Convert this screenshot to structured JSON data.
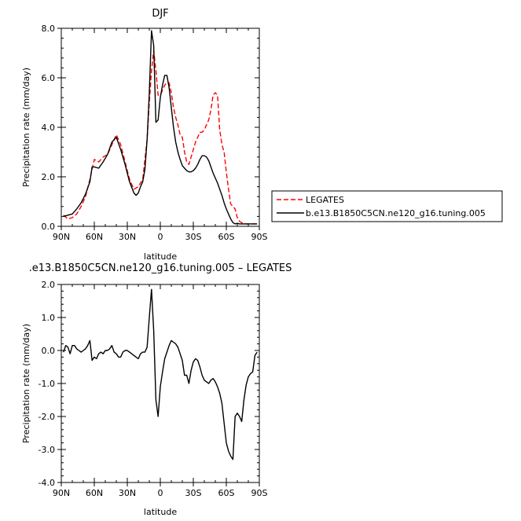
{
  "chart_data": [
    {
      "type": "line",
      "title": "DJF",
      "xlabel": "latitude",
      "ylabel": "Precipitation rate (mm/day)",
      "xlim": [
        90,
        -90
      ],
      "ylim": [
        0,
        8
      ],
      "x_ticks": [
        90,
        60,
        30,
        0,
        -30,
        -60,
        -90
      ],
      "x_tick_labels": [
        "90N",
        "60N",
        "30N",
        "0",
        "30S",
        "60S",
        "90S"
      ],
      "y_ticks": [
        0,
        2,
        4,
        6,
        8
      ],
      "y_tick_labels": [
        "0.0",
        "2.0",
        "4.0",
        "6.0",
        "8.0"
      ],
      "legend_position": "right",
      "series": [
        {
          "name": "LEGATES",
          "color": "#ff0000",
          "dash": "dashed",
          "x": [
            88,
            84,
            80,
            76,
            72,
            68,
            64,
            60,
            56,
            52,
            48,
            44,
            40,
            36,
            32,
            28,
            24,
            20,
            16,
            12,
            10,
            8,
            6,
            4,
            2,
            0,
            -2,
            -4,
            -6,
            -8,
            -10,
            -12,
            -14,
            -16,
            -18,
            -20,
            -22,
            -24,
            -26,
            -28,
            -30,
            -32,
            -34,
            -36,
            -38,
            -40,
            -42,
            -44,
            -46,
            -48,
            -50,
            -52,
            -54,
            -56,
            -58,
            -60,
            -62,
            -64,
            -66,
            -68,
            -70,
            -72,
            -74,
            -76,
            -78,
            -80,
            -82,
            -84,
            -86,
            -88
          ],
          "y": [
            0.45,
            0.3,
            0.35,
            0.5,
            0.8,
            1.2,
            1.9,
            2.7,
            2.6,
            2.8,
            2.9,
            3.3,
            3.7,
            3.3,
            2.6,
            1.9,
            1.5,
            1.6,
            1.9,
            3.5,
            5.0,
            6.3,
            7.1,
            6.3,
            5.3,
            5.3,
            5.5,
            5.7,
            5.8,
            5.8,
            5.4,
            4.8,
            4.4,
            4.1,
            3.7,
            3.6,
            3.0,
            2.6,
            2.5,
            2.8,
            3.1,
            3.4,
            3.6,
            3.8,
            3.8,
            3.9,
            4.1,
            4.3,
            4.7,
            5.3,
            5.4,
            5.3,
            3.9,
            3.3,
            3.0,
            2.2,
            1.5,
            0.9,
            0.8,
            0.7,
            0.35,
            0.2,
            0.15,
            0.1,
            0.1,
            0.1,
            0.1,
            0.1,
            0.1,
            0.1
          ]
        },
        {
          "name": "b.e13.B1850C5CN.ne120_g16.tuning.005",
          "color": "#000000",
          "dash": "solid",
          "x": [
            88,
            84,
            80,
            76,
            72,
            68,
            64,
            62,
            60,
            56,
            52,
            48,
            44,
            40,
            36,
            32,
            28,
            24,
            22,
            20,
            18,
            16,
            14,
            12,
            10,
            8,
            6,
            4,
            2,
            0,
            -2,
            -4,
            -6,
            -8,
            -10,
            -12,
            -14,
            -16,
            -18,
            -20,
            -22,
            -24,
            -26,
            -28,
            -30,
            -32,
            -34,
            -36,
            -38,
            -40,
            -42,
            -44,
            -46,
            -48,
            -50,
            -52,
            -54,
            -56,
            -58,
            -60,
            -62,
            -64,
            -66,
            -68,
            -70,
            -72,
            -74,
            -76,
            -78,
            -80,
            -82,
            -84,
            -86,
            -88
          ],
          "y": [
            0.4,
            0.45,
            0.5,
            0.7,
            0.95,
            1.3,
            1.8,
            2.4,
            2.4,
            2.35,
            2.6,
            2.9,
            3.4,
            3.6,
            3.1,
            2.5,
            1.8,
            1.35,
            1.25,
            1.35,
            1.6,
            1.8,
            2.3,
            3.5,
            5.4,
            7.9,
            7.3,
            4.2,
            4.3,
            5.2,
            5.7,
            6.1,
            6.1,
            5.6,
            4.8,
            4.0,
            3.4,
            3.0,
            2.7,
            2.45,
            2.35,
            2.25,
            2.2,
            2.2,
            2.25,
            2.35,
            2.5,
            2.7,
            2.85,
            2.85,
            2.8,
            2.65,
            2.4,
            2.15,
            1.95,
            1.75,
            1.5,
            1.25,
            0.95,
            0.7,
            0.5,
            0.3,
            0.15,
            0.1,
            0.12,
            0.1,
            0.1,
            0.1,
            0.1,
            0.1,
            0.1,
            0.1,
            0.1,
            0.1
          ]
        }
      ]
    },
    {
      "type": "line",
      "title": ".e13.B1850C5CN.ne120_g16.tuning.005 – LEGATES",
      "xlabel": "latitude",
      "ylabel": "Precipitation rate (mm/day)",
      "xlim": [
        90,
        -90
      ],
      "ylim": [
        -4,
        2
      ],
      "x_ticks": [
        90,
        60,
        30,
        0,
        -30,
        -60,
        -90
      ],
      "x_tick_labels": [
        "90N",
        "60N",
        "30N",
        "0",
        "30S",
        "60S",
        "90S"
      ],
      "y_ticks": [
        -4,
        -3,
        -2,
        -1,
        0,
        1,
        2
      ],
      "y_tick_labels": [
        "-4.0",
        "-3.0",
        "-2.0",
        "-1.0",
        "0.0",
        "1.0",
        "2.0"
      ],
      "series": [
        {
          "color": "#000000",
          "dash": "solid",
          "x": [
            88,
            86,
            84,
            82,
            80,
            78,
            76,
            74,
            72,
            70,
            68,
            66,
            64,
            62,
            60,
            58,
            56,
            54,
            52,
            50,
            48,
            46,
            44,
            42,
            40,
            38,
            36,
            34,
            32,
            30,
            28,
            26,
            24,
            22,
            20,
            18,
            16,
            14,
            12,
            10,
            8,
            6,
            4,
            2,
            0,
            -2,
            -4,
            -6,
            -8,
            -10,
            -12,
            -14,
            -16,
            -18,
            -20,
            -22,
            -24,
            -26,
            -28,
            -30,
            -32,
            -34,
            -36,
            -38,
            -40,
            -42,
            -44,
            -46,
            -48,
            -50,
            -52,
            -54,
            -56,
            -58,
            -60,
            -62,
            -64,
            -66,
            -68,
            -70,
            -72,
            -74,
            -76,
            -78,
            -80,
            -82,
            -84,
            -86,
            -88
          ],
          "y": [
            -0.05,
            0.15,
            0.1,
            -0.1,
            0.15,
            0.15,
            0.05,
            0.0,
            -0.05,
            0.0,
            0.05,
            0.15,
            0.3,
            -0.3,
            -0.2,
            -0.25,
            -0.1,
            -0.05,
            -0.1,
            0.0,
            0.0,
            0.05,
            0.15,
            -0.05,
            -0.1,
            -0.2,
            -0.2,
            -0.05,
            0.0,
            0.0,
            -0.05,
            -0.1,
            -0.15,
            -0.2,
            -0.25,
            -0.1,
            -0.05,
            -0.05,
            0.1,
            1.0,
            1.85,
            0.6,
            -1.5,
            -2.0,
            -1.1,
            -0.65,
            -0.25,
            -0.05,
            0.15,
            0.3,
            0.25,
            0.2,
            0.1,
            -0.1,
            -0.3,
            -0.75,
            -0.75,
            -1.0,
            -0.6,
            -0.35,
            -0.25,
            -0.3,
            -0.5,
            -0.75,
            -0.9,
            -0.95,
            -1.0,
            -0.9,
            -0.85,
            -0.95,
            -1.1,
            -1.3,
            -1.6,
            -2.2,
            -2.8,
            -3.05,
            -3.2,
            -3.3,
            -2.0,
            -1.9,
            -2.0,
            -2.15,
            -1.5,
            -1.05,
            -0.8,
            -0.7,
            -0.65,
            -0.15,
            -0.05
          ]
        }
      ]
    }
  ]
}
